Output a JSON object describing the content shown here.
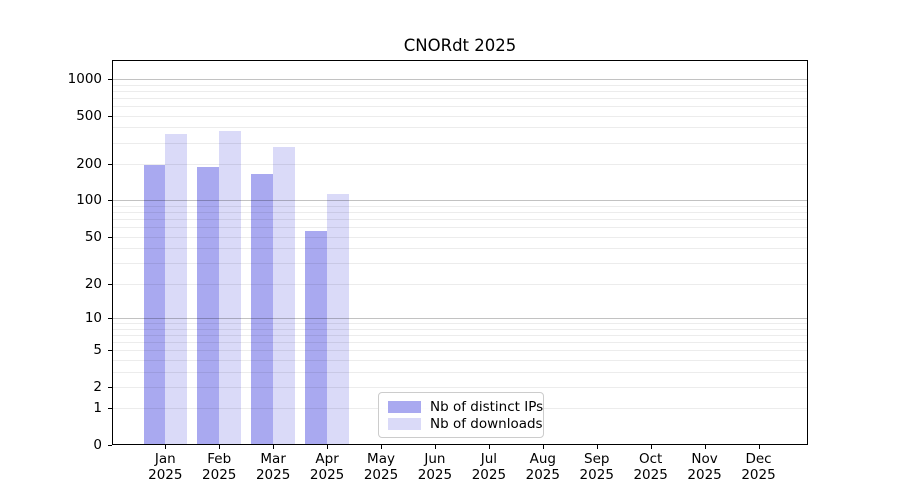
{
  "title": "CNORdt 2025",
  "chart_data": {
    "type": "bar",
    "title": "CNORdt 2025",
    "scale": "log1p",
    "xlabel": "",
    "ylabel": "",
    "year": "2025",
    "categories": [
      "Jan",
      "Feb",
      "Mar",
      "Apr",
      "May",
      "Jun",
      "Jul",
      "Aug",
      "Sep",
      "Oct",
      "Nov",
      "Dec"
    ],
    "series": [
      {
        "name": "Nb of distinct IPs",
        "color": "#a9a9f0",
        "values": [
          195,
          188,
          165,
          56,
          null,
          null,
          null,
          null,
          null,
          null,
          null,
          null
        ]
      },
      {
        "name": "Nb of downloads",
        "color": "#dadaf8",
        "values": [
          350,
          373,
          278,
          114,
          null,
          null,
          null,
          null,
          null,
          null,
          null,
          null
        ]
      }
    ],
    "yticks": [
      0,
      1,
      2,
      5,
      10,
      20,
      50,
      100,
      200,
      500,
      1000
    ],
    "ylim": [
      0,
      1430
    ],
    "grid": true,
    "gridline_minor_values": [
      1,
      2,
      3,
      4,
      5,
      6,
      7,
      8,
      9,
      20,
      30,
      40,
      50,
      60,
      70,
      80,
      90,
      200,
      300,
      400,
      500,
      600,
      700,
      800,
      900
    ],
    "gridline_major_values": [
      10,
      100,
      1000
    ],
    "legend_position": "lower center",
    "colors": {
      "spine": "#000000",
      "background": "#ffffff",
      "major_grid": "#c3c3c3",
      "minor_grid": "#ececec"
    }
  }
}
